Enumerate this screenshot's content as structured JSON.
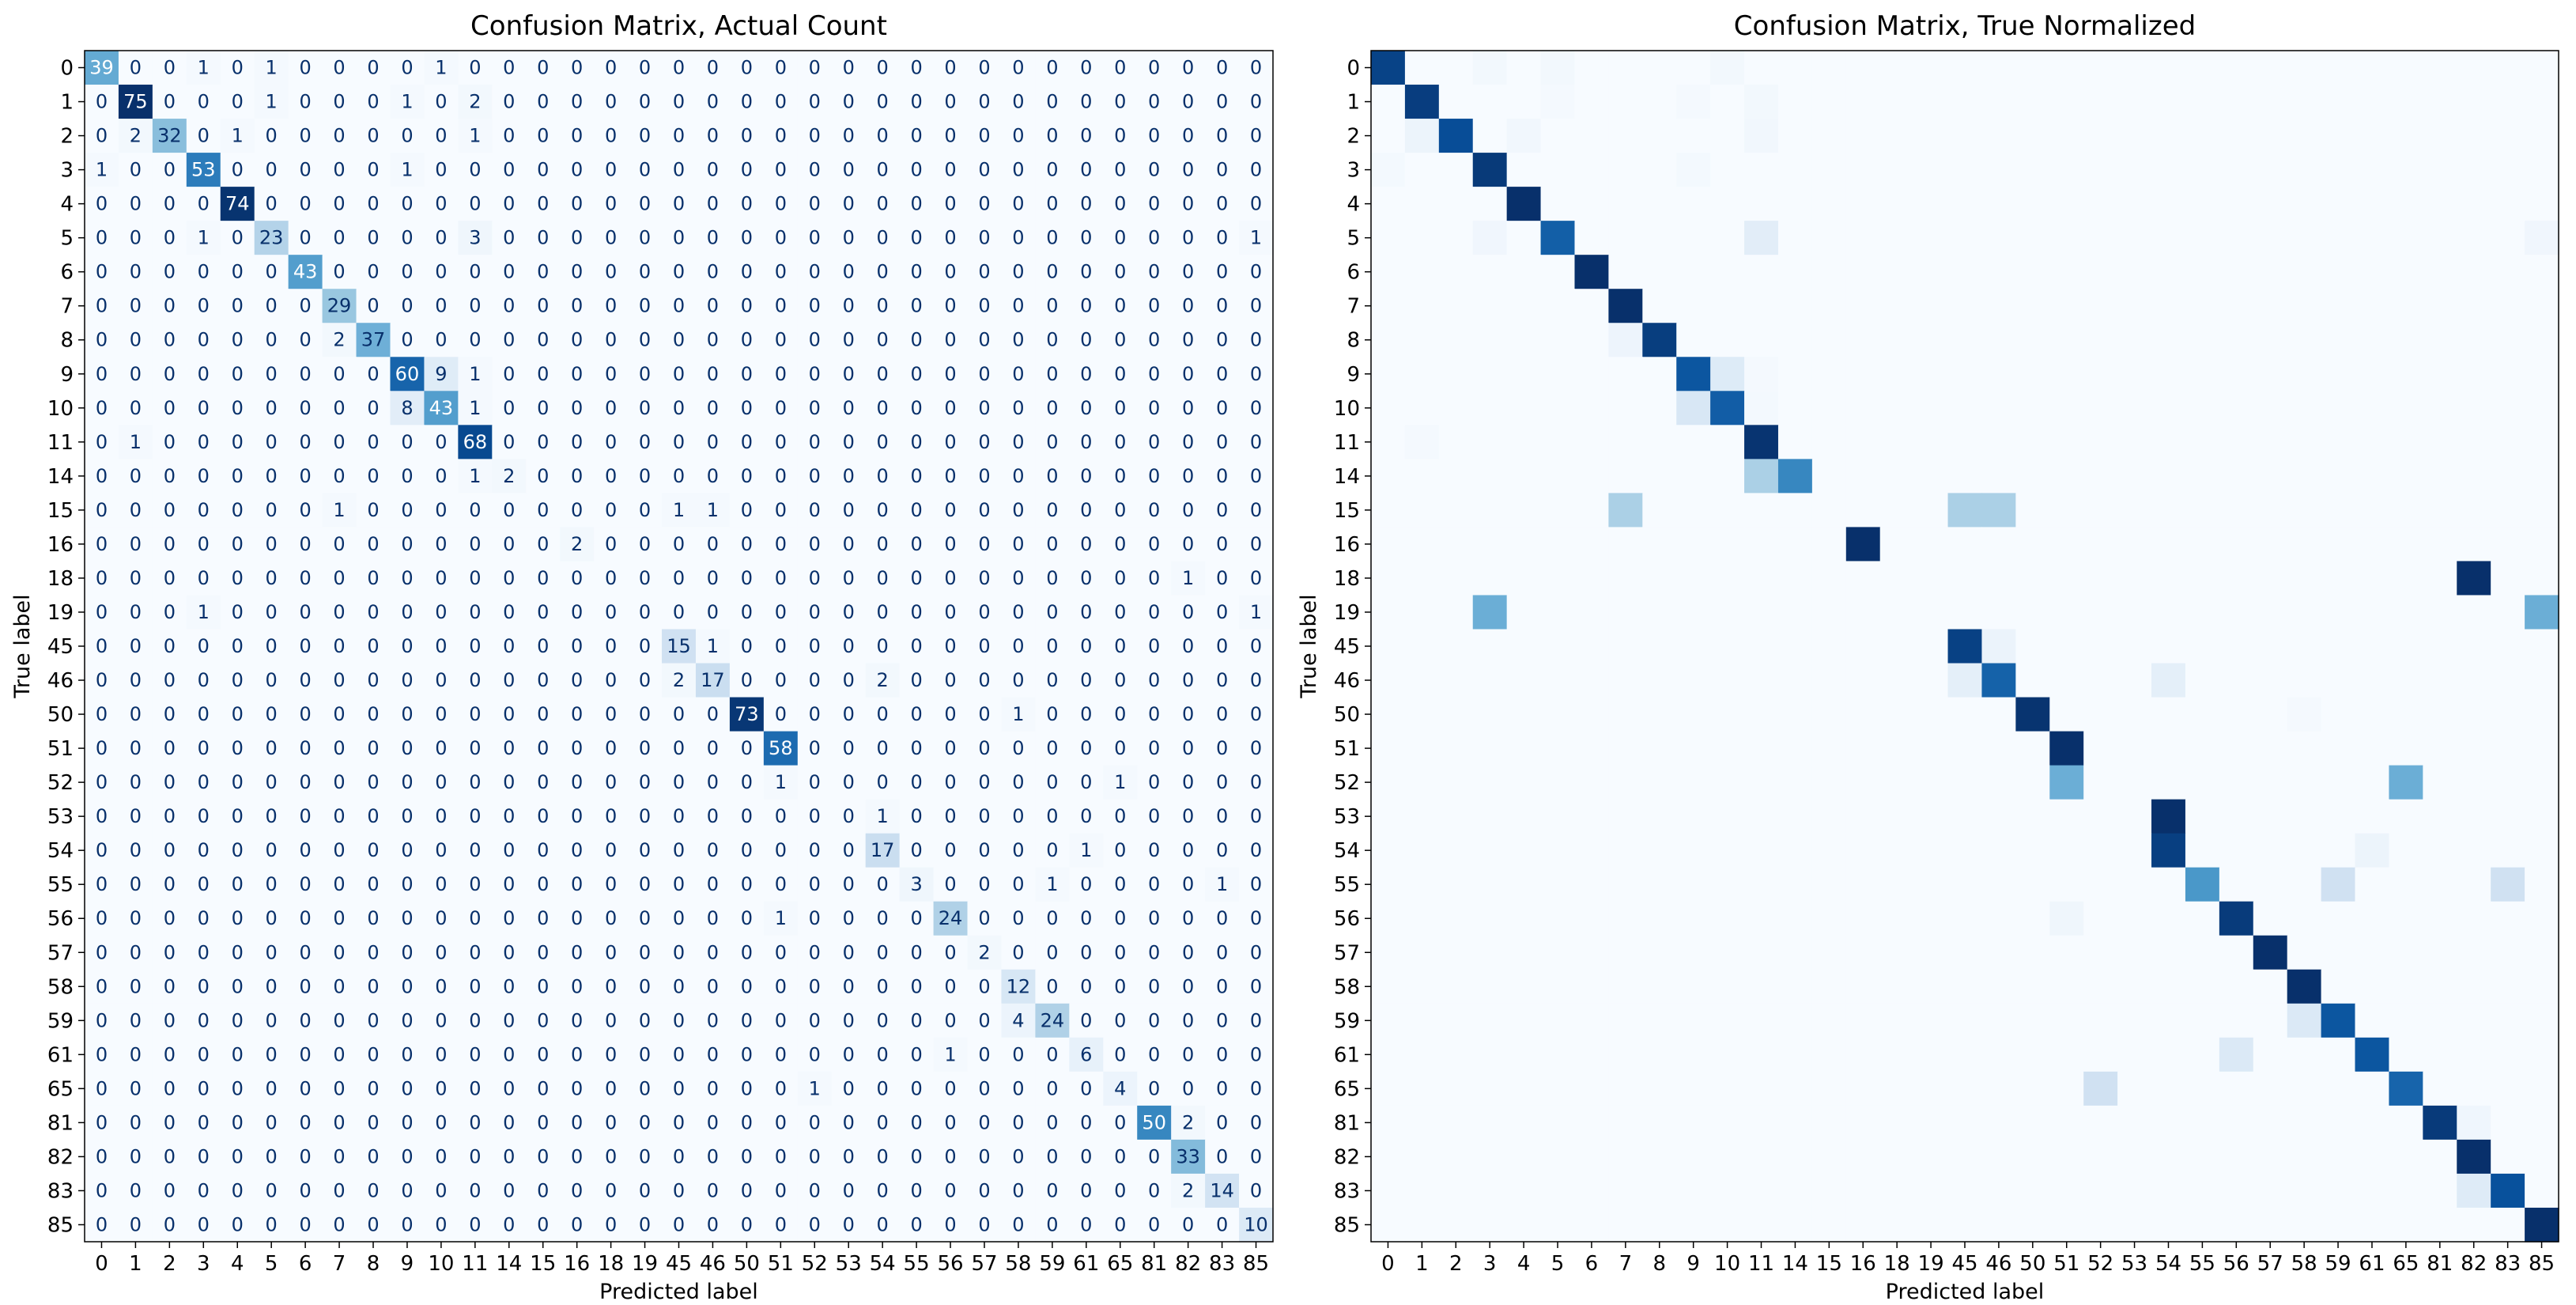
{
  "figure": {
    "colormap": "Blues",
    "colors": {
      "low": "#f7fbff",
      "high": "#08306b",
      "axis": "#000000"
    }
  },
  "chart_data": [
    {
      "type": "heatmap",
      "title": "Confusion Matrix, Actual Count",
      "xlabel": "Predicted label",
      "ylabel": "True label",
      "show_values": true,
      "labels": [
        "0",
        "1",
        "2",
        "3",
        "4",
        "5",
        "6",
        "7",
        "8",
        "9",
        "10",
        "11",
        "14",
        "15",
        "16",
        "18",
        "19",
        "45",
        "46",
        "50",
        "51",
        "52",
        "53",
        "54",
        "55",
        "56",
        "57",
        "58",
        "59",
        "61",
        "65",
        "81",
        "82",
        "83",
        "85"
      ],
      "matrix": [
        [
          39,
          0,
          0,
          1,
          0,
          1,
          0,
          0,
          0,
          0,
          1,
          0,
          0,
          0,
          0,
          0,
          0,
          0,
          0,
          0,
          0,
          0,
          0,
          0,
          0,
          0,
          0,
          0,
          0,
          0,
          0,
          0,
          0,
          0,
          0
        ],
        [
          0,
          75,
          0,
          0,
          0,
          1,
          0,
          0,
          0,
          1,
          0,
          2,
          0,
          0,
          0,
          0,
          0,
          0,
          0,
          0,
          0,
          0,
          0,
          0,
          0,
          0,
          0,
          0,
          0,
          0,
          0,
          0,
          0,
          0,
          0
        ],
        [
          0,
          2,
          32,
          0,
          1,
          0,
          0,
          0,
          0,
          0,
          0,
          1,
          0,
          0,
          0,
          0,
          0,
          0,
          0,
          0,
          0,
          0,
          0,
          0,
          0,
          0,
          0,
          0,
          0,
          0,
          0,
          0,
          0,
          0,
          0
        ],
        [
          1,
          0,
          0,
          53,
          0,
          0,
          0,
          0,
          0,
          1,
          0,
          0,
          0,
          0,
          0,
          0,
          0,
          0,
          0,
          0,
          0,
          0,
          0,
          0,
          0,
          0,
          0,
          0,
          0,
          0,
          0,
          0,
          0,
          0,
          0
        ],
        [
          0,
          0,
          0,
          0,
          74,
          0,
          0,
          0,
          0,
          0,
          0,
          0,
          0,
          0,
          0,
          0,
          0,
          0,
          0,
          0,
          0,
          0,
          0,
          0,
          0,
          0,
          0,
          0,
          0,
          0,
          0,
          0,
          0,
          0,
          0
        ],
        [
          0,
          0,
          0,
          1,
          0,
          23,
          0,
          0,
          0,
          0,
          0,
          3,
          0,
          0,
          0,
          0,
          0,
          0,
          0,
          0,
          0,
          0,
          0,
          0,
          0,
          0,
          0,
          0,
          0,
          0,
          0,
          0,
          0,
          0,
          1
        ],
        [
          0,
          0,
          0,
          0,
          0,
          0,
          43,
          0,
          0,
          0,
          0,
          0,
          0,
          0,
          0,
          0,
          0,
          0,
          0,
          0,
          0,
          0,
          0,
          0,
          0,
          0,
          0,
          0,
          0,
          0,
          0,
          0,
          0,
          0,
          0
        ],
        [
          0,
          0,
          0,
          0,
          0,
          0,
          0,
          29,
          0,
          0,
          0,
          0,
          0,
          0,
          0,
          0,
          0,
          0,
          0,
          0,
          0,
          0,
          0,
          0,
          0,
          0,
          0,
          0,
          0,
          0,
          0,
          0,
          0,
          0,
          0
        ],
        [
          0,
          0,
          0,
          0,
          0,
          0,
          0,
          2,
          37,
          0,
          0,
          0,
          0,
          0,
          0,
          0,
          0,
          0,
          0,
          0,
          0,
          0,
          0,
          0,
          0,
          0,
          0,
          0,
          0,
          0,
          0,
          0,
          0,
          0,
          0
        ],
        [
          0,
          0,
          0,
          0,
          0,
          0,
          0,
          0,
          0,
          60,
          9,
          1,
          0,
          0,
          0,
          0,
          0,
          0,
          0,
          0,
          0,
          0,
          0,
          0,
          0,
          0,
          0,
          0,
          0,
          0,
          0,
          0,
          0,
          0,
          0
        ],
        [
          0,
          0,
          0,
          0,
          0,
          0,
          0,
          0,
          0,
          8,
          43,
          1,
          0,
          0,
          0,
          0,
          0,
          0,
          0,
          0,
          0,
          0,
          0,
          0,
          0,
          0,
          0,
          0,
          0,
          0,
          0,
          0,
          0,
          0,
          0
        ],
        [
          0,
          1,
          0,
          0,
          0,
          0,
          0,
          0,
          0,
          0,
          0,
          68,
          0,
          0,
          0,
          0,
          0,
          0,
          0,
          0,
          0,
          0,
          0,
          0,
          0,
          0,
          0,
          0,
          0,
          0,
          0,
          0,
          0,
          0,
          0
        ],
        [
          0,
          0,
          0,
          0,
          0,
          0,
          0,
          0,
          0,
          0,
          0,
          1,
          2,
          0,
          0,
          0,
          0,
          0,
          0,
          0,
          0,
          0,
          0,
          0,
          0,
          0,
          0,
          0,
          0,
          0,
          0,
          0,
          0,
          0,
          0
        ],
        [
          0,
          0,
          0,
          0,
          0,
          0,
          0,
          1,
          0,
          0,
          0,
          0,
          0,
          0,
          0,
          0,
          0,
          1,
          1,
          0,
          0,
          0,
          0,
          0,
          0,
          0,
          0,
          0,
          0,
          0,
          0,
          0,
          0,
          0,
          0
        ],
        [
          0,
          0,
          0,
          0,
          0,
          0,
          0,
          0,
          0,
          0,
          0,
          0,
          0,
          0,
          2,
          0,
          0,
          0,
          0,
          0,
          0,
          0,
          0,
          0,
          0,
          0,
          0,
          0,
          0,
          0,
          0,
          0,
          0,
          0,
          0
        ],
        [
          0,
          0,
          0,
          0,
          0,
          0,
          0,
          0,
          0,
          0,
          0,
          0,
          0,
          0,
          0,
          0,
          0,
          0,
          0,
          0,
          0,
          0,
          0,
          0,
          0,
          0,
          0,
          0,
          0,
          0,
          0,
          0,
          1,
          0,
          0
        ],
        [
          0,
          0,
          0,
          1,
          0,
          0,
          0,
          0,
          0,
          0,
          0,
          0,
          0,
          0,
          0,
          0,
          0,
          0,
          0,
          0,
          0,
          0,
          0,
          0,
          0,
          0,
          0,
          0,
          0,
          0,
          0,
          0,
          0,
          0,
          1
        ],
        [
          0,
          0,
          0,
          0,
          0,
          0,
          0,
          0,
          0,
          0,
          0,
          0,
          0,
          0,
          0,
          0,
          0,
          15,
          1,
          0,
          0,
          0,
          0,
          0,
          0,
          0,
          0,
          0,
          0,
          0,
          0,
          0,
          0,
          0,
          0
        ],
        [
          0,
          0,
          0,
          0,
          0,
          0,
          0,
          0,
          0,
          0,
          0,
          0,
          0,
          0,
          0,
          0,
          0,
          2,
          17,
          0,
          0,
          0,
          0,
          2,
          0,
          0,
          0,
          0,
          0,
          0,
          0,
          0,
          0,
          0,
          0
        ],
        [
          0,
          0,
          0,
          0,
          0,
          0,
          0,
          0,
          0,
          0,
          0,
          0,
          0,
          0,
          0,
          0,
          0,
          0,
          0,
          73,
          0,
          0,
          0,
          0,
          0,
          0,
          0,
          1,
          0,
          0,
          0,
          0,
          0,
          0,
          0
        ],
        [
          0,
          0,
          0,
          0,
          0,
          0,
          0,
          0,
          0,
          0,
          0,
          0,
          0,
          0,
          0,
          0,
          0,
          0,
          0,
          0,
          58,
          0,
          0,
          0,
          0,
          0,
          0,
          0,
          0,
          0,
          0,
          0,
          0,
          0,
          0
        ],
        [
          0,
          0,
          0,
          0,
          0,
          0,
          0,
          0,
          0,
          0,
          0,
          0,
          0,
          0,
          0,
          0,
          0,
          0,
          0,
          0,
          1,
          0,
          0,
          0,
          0,
          0,
          0,
          0,
          0,
          0,
          1,
          0,
          0,
          0,
          0
        ],
        [
          0,
          0,
          0,
          0,
          0,
          0,
          0,
          0,
          0,
          0,
          0,
          0,
          0,
          0,
          0,
          0,
          0,
          0,
          0,
          0,
          0,
          0,
          0,
          1,
          0,
          0,
          0,
          0,
          0,
          0,
          0,
          0,
          0,
          0,
          0
        ],
        [
          0,
          0,
          0,
          0,
          0,
          0,
          0,
          0,
          0,
          0,
          0,
          0,
          0,
          0,
          0,
          0,
          0,
          0,
          0,
          0,
          0,
          0,
          0,
          17,
          0,
          0,
          0,
          0,
          0,
          1,
          0,
          0,
          0,
          0,
          0
        ],
        [
          0,
          0,
          0,
          0,
          0,
          0,
          0,
          0,
          0,
          0,
          0,
          0,
          0,
          0,
          0,
          0,
          0,
          0,
          0,
          0,
          0,
          0,
          0,
          0,
          3,
          0,
          0,
          0,
          1,
          0,
          0,
          0,
          0,
          1,
          0
        ],
        [
          0,
          0,
          0,
          0,
          0,
          0,
          0,
          0,
          0,
          0,
          0,
          0,
          0,
          0,
          0,
          0,
          0,
          0,
          0,
          0,
          1,
          0,
          0,
          0,
          0,
          24,
          0,
          0,
          0,
          0,
          0,
          0,
          0,
          0,
          0
        ],
        [
          0,
          0,
          0,
          0,
          0,
          0,
          0,
          0,
          0,
          0,
          0,
          0,
          0,
          0,
          0,
          0,
          0,
          0,
          0,
          0,
          0,
          0,
          0,
          0,
          0,
          0,
          2,
          0,
          0,
          0,
          0,
          0,
          0,
          0,
          0
        ],
        [
          0,
          0,
          0,
          0,
          0,
          0,
          0,
          0,
          0,
          0,
          0,
          0,
          0,
          0,
          0,
          0,
          0,
          0,
          0,
          0,
          0,
          0,
          0,
          0,
          0,
          0,
          0,
          12,
          0,
          0,
          0,
          0,
          0,
          0,
          0
        ],
        [
          0,
          0,
          0,
          0,
          0,
          0,
          0,
          0,
          0,
          0,
          0,
          0,
          0,
          0,
          0,
          0,
          0,
          0,
          0,
          0,
          0,
          0,
          0,
          0,
          0,
          0,
          0,
          4,
          24,
          0,
          0,
          0,
          0,
          0,
          0
        ],
        [
          0,
          0,
          0,
          0,
          0,
          0,
          0,
          0,
          0,
          0,
          0,
          0,
          0,
          0,
          0,
          0,
          0,
          0,
          0,
          0,
          0,
          0,
          0,
          0,
          0,
          1,
          0,
          0,
          0,
          6,
          0,
          0,
          0,
          0,
          0
        ],
        [
          0,
          0,
          0,
          0,
          0,
          0,
          0,
          0,
          0,
          0,
          0,
          0,
          0,
          0,
          0,
          0,
          0,
          0,
          0,
          0,
          0,
          1,
          0,
          0,
          0,
          0,
          0,
          0,
          0,
          0,
          4,
          0,
          0,
          0,
          0
        ],
        [
          0,
          0,
          0,
          0,
          0,
          0,
          0,
          0,
          0,
          0,
          0,
          0,
          0,
          0,
          0,
          0,
          0,
          0,
          0,
          0,
          0,
          0,
          0,
          0,
          0,
          0,
          0,
          0,
          0,
          0,
          0,
          50,
          2,
          0,
          0
        ],
        [
          0,
          0,
          0,
          0,
          0,
          0,
          0,
          0,
          0,
          0,
          0,
          0,
          0,
          0,
          0,
          0,
          0,
          0,
          0,
          0,
          0,
          0,
          0,
          0,
          0,
          0,
          0,
          0,
          0,
          0,
          0,
          0,
          33,
          0,
          0
        ],
        [
          0,
          0,
          0,
          0,
          0,
          0,
          0,
          0,
          0,
          0,
          0,
          0,
          0,
          0,
          0,
          0,
          0,
          0,
          0,
          0,
          0,
          0,
          0,
          0,
          0,
          0,
          0,
          0,
          0,
          0,
          0,
          0,
          2,
          14,
          0
        ],
        [
          0,
          0,
          0,
          0,
          0,
          0,
          0,
          0,
          0,
          0,
          0,
          0,
          0,
          0,
          0,
          0,
          0,
          0,
          0,
          0,
          0,
          0,
          0,
          0,
          0,
          0,
          0,
          0,
          0,
          0,
          0,
          0,
          0,
          0,
          10
        ]
      ]
    },
    {
      "type": "heatmap",
      "title": "Confusion Matrix, True Normalized",
      "xlabel": "Predicted label",
      "ylabel": "True label",
      "show_values": false,
      "normalization": "row",
      "labels": [
        "0",
        "1",
        "2",
        "3",
        "4",
        "5",
        "6",
        "7",
        "8",
        "9",
        "10",
        "11",
        "14",
        "15",
        "16",
        "18",
        "19",
        "45",
        "46",
        "50",
        "51",
        "52",
        "53",
        "54",
        "55",
        "56",
        "57",
        "58",
        "59",
        "61",
        "65",
        "81",
        "82",
        "83",
        "85"
      ],
      "source_matrix_index": 0
    }
  ]
}
